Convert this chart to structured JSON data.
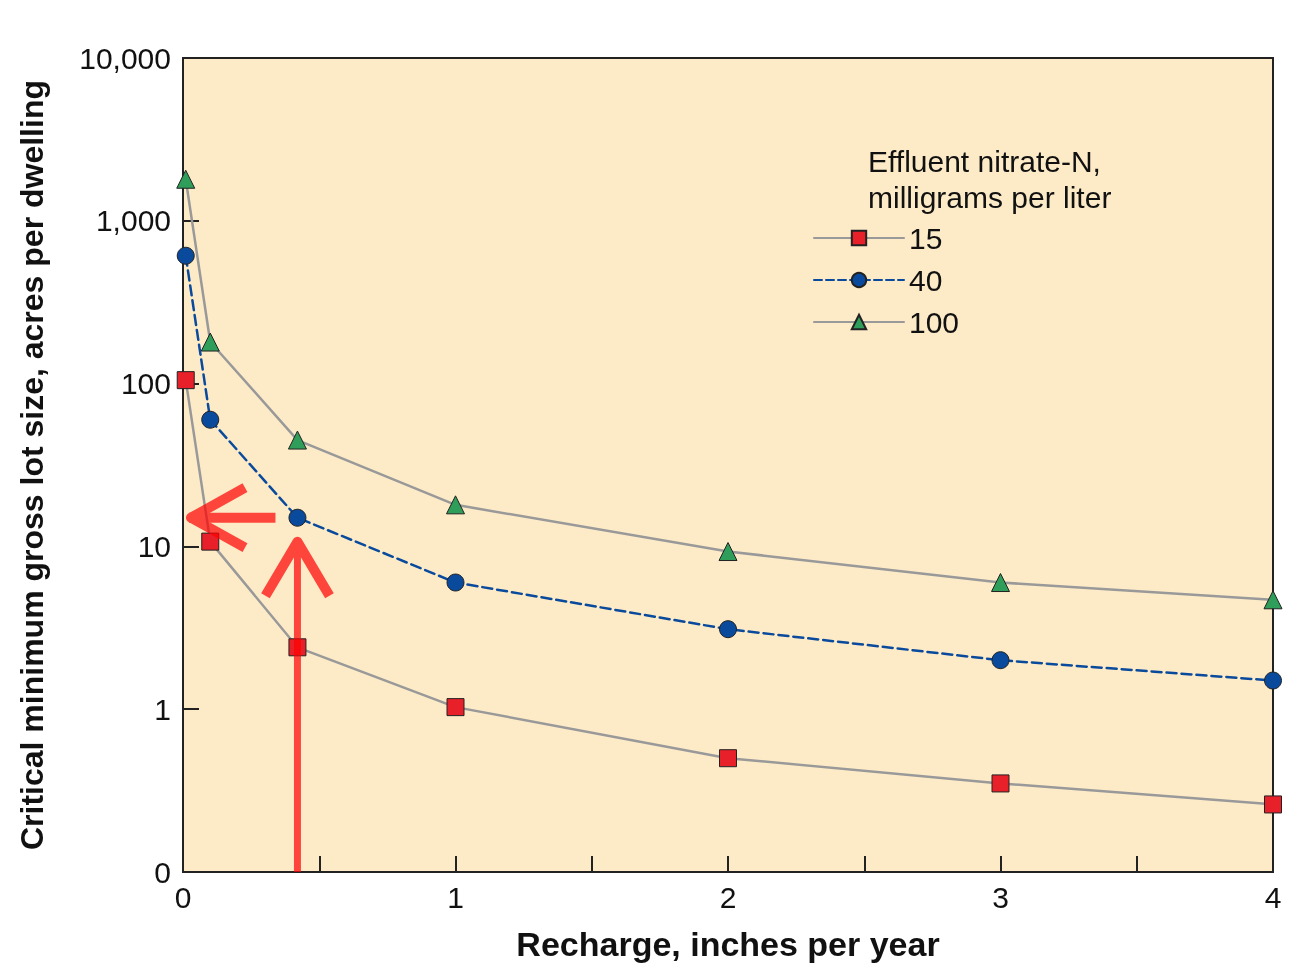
{
  "chart_data": {
    "type": "line",
    "xlabel": "Recharge, inches per year",
    "ylabel": "Critical minimum gross lot size, acres per dwelling",
    "legend_title": "Effluent nitrate-N,\nmilligrams per liter",
    "x": [
      0.01,
      0.1,
      0.42,
      1,
      2,
      3,
      4
    ],
    "series": [
      {
        "name": "15",
        "color": "#e8202a",
        "marker": "square",
        "line_style": "solid",
        "values": [
          105,
          10.7,
          2.4,
          1.03,
          0.5,
          0.35,
          0.26
        ]
      },
      {
        "name": "40",
        "color": "#0a4a9c",
        "marker": "circle",
        "line_style": "dashed",
        "values": [
          610,
          60,
          15,
          6,
          3.1,
          2.0,
          1.5
        ]
      },
      {
        "name": "100",
        "color": "#2e9e5a",
        "marker": "triangle",
        "line_style": "solid",
        "values": [
          1800,
          180,
          45,
          18,
          9.3,
          6.0,
          4.7
        ]
      }
    ],
    "log": "y",
    "xlim": [
      0,
      4
    ],
    "xticks": [
      0,
      {
        "value": 0.5,
        "label": null
      },
      1,
      {
        "value": 1.5,
        "label": null
      },
      2,
      {
        "value": 2.5,
        "label": null
      },
      3,
      {
        "value": 3.5,
        "label": null
      },
      4
    ],
    "ylim": [
      0.1,
      10000
    ],
    "yticks": [
      {
        "value": 0.1,
        "label": "0"
      },
      1,
      10,
      100,
      {
        "value": 1000,
        "label": "1,000"
      },
      {
        "value": 10000,
        "label": "10,000"
      }
    ],
    "grid": false,
    "legend": "top right"
  }
}
